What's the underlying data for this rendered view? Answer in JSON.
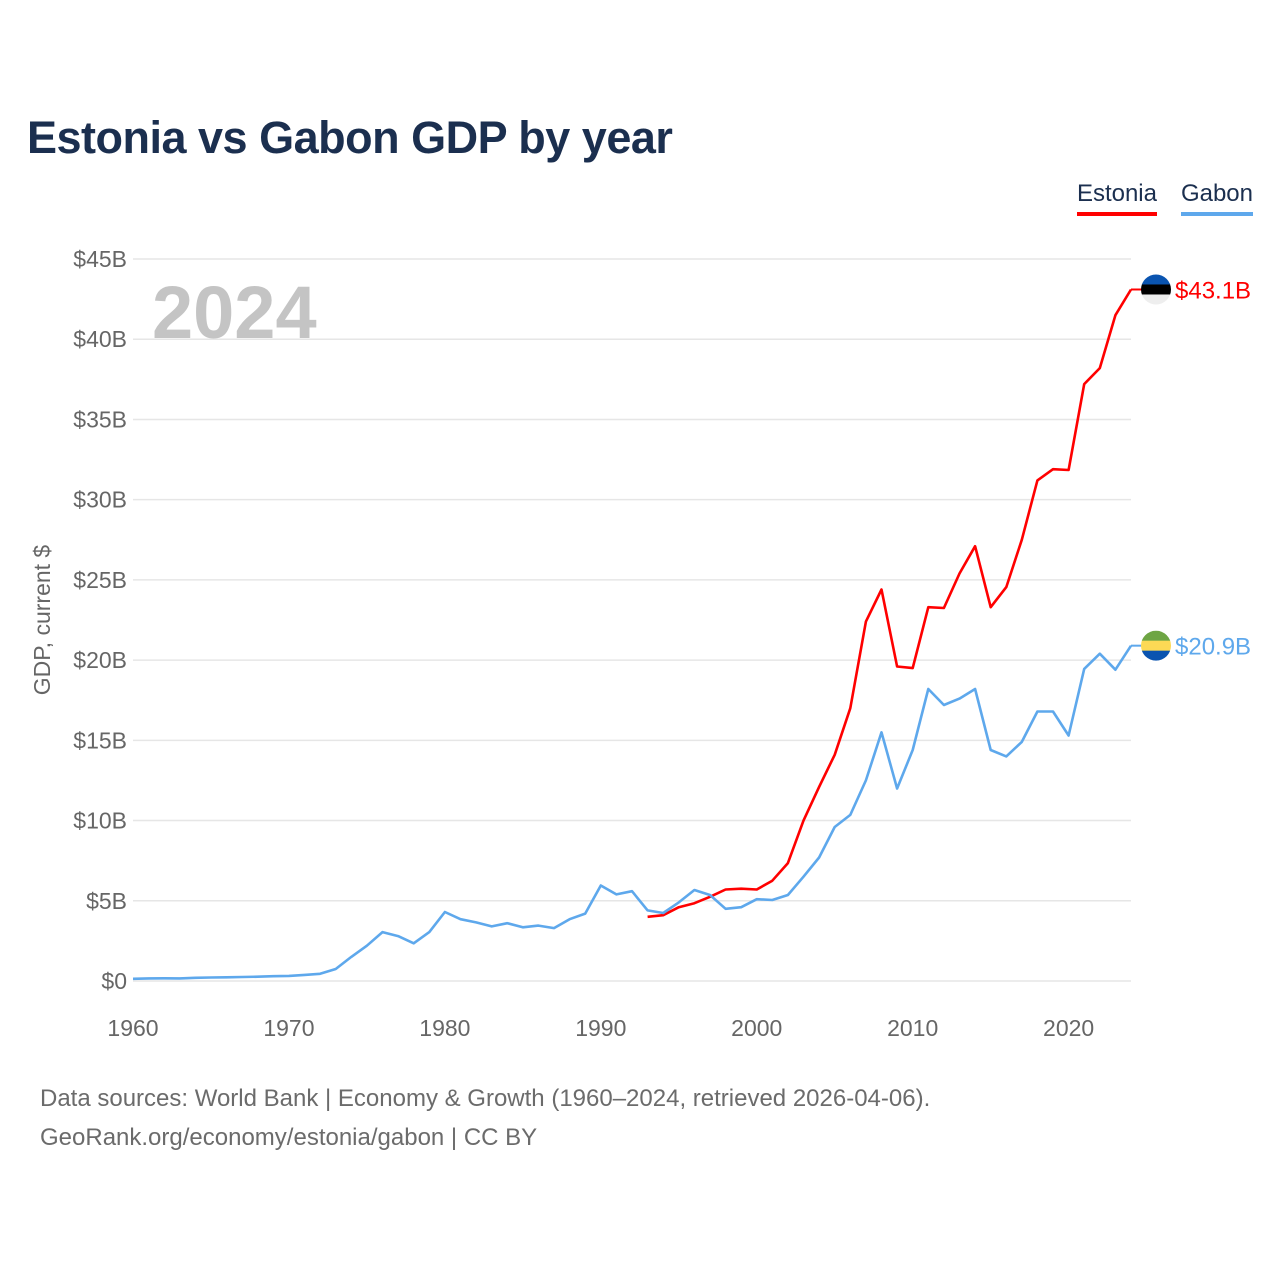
{
  "chart_data": {
    "type": "line",
    "title": "Estonia vs Gabon GDP by year",
    "xlabel": "",
    "ylabel": "GDP, current $",
    "xlim": [
      1960,
      2024
    ],
    "ylim": [
      0,
      45
    ],
    "x_ticks": [
      1960,
      1970,
      1980,
      1990,
      2000,
      2010,
      2020
    ],
    "x_tick_labels": [
      "1960",
      "1970",
      "1980",
      "1990",
      "2000",
      "2010",
      "2020"
    ],
    "y_ticks": [
      0,
      5,
      10,
      15,
      20,
      25,
      30,
      35,
      40,
      45
    ],
    "y_tick_labels": [
      "$0",
      "$5B",
      "$10B",
      "$15B",
      "$20B",
      "$25B",
      "$30B",
      "$35B",
      "$40B",
      "$45B"
    ],
    "grid": true,
    "legend_position": "top-right",
    "year_watermark": "2024",
    "series": [
      {
        "name": "Estonia",
        "color": "#ff0000",
        "end_label": "$43.1B",
        "start_year": 1993,
        "values": [
          4.0,
          4.1,
          4.6,
          4.85,
          5.25,
          5.7,
          5.75,
          5.7,
          6.25,
          7.35,
          10.0,
          12.1,
          14.1,
          17.0,
          22.4,
          24.4,
          19.6,
          19.5,
          23.3,
          23.25,
          25.4,
          27.1,
          23.3,
          24.55,
          27.5,
          31.2,
          31.9,
          31.85,
          37.2,
          38.2,
          41.5,
          43.1
        ]
      },
      {
        "name": "Gabon",
        "color": "#5ea8ec",
        "end_label": "$20.9B",
        "start_year": 1960,
        "values": [
          0.14,
          0.16,
          0.17,
          0.16,
          0.2,
          0.22,
          0.23,
          0.25,
          0.27,
          0.3,
          0.32,
          0.38,
          0.45,
          0.75,
          1.5,
          2.2,
          3.05,
          2.8,
          2.35,
          3.05,
          4.3,
          3.85,
          3.65,
          3.4,
          3.6,
          3.35,
          3.45,
          3.3,
          3.85,
          4.2,
          5.95,
          5.4,
          5.6,
          4.4,
          4.24,
          4.9,
          5.67,
          5.36,
          4.5,
          4.6,
          5.1,
          5.05,
          5.36,
          6.5,
          7.7,
          9.6,
          10.35,
          12.5,
          15.5,
          12.0,
          14.4,
          18.2,
          17.2,
          17.6,
          18.2,
          14.4,
          14.0,
          14.9,
          16.8,
          16.8,
          15.3,
          19.45,
          20.4,
          19.4,
          20.9
        ]
      }
    ]
  },
  "footer": {
    "line1": "Data sources: World Bank | Economy & Growth (1960–2024, retrieved 2026-04-06).",
    "line2": "GeoRank.org/economy/estonia/gabon | CC BY"
  }
}
